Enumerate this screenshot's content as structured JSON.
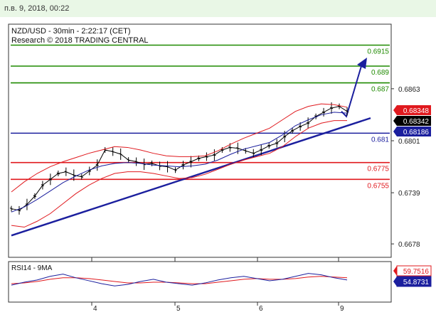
{
  "timestamp": "п.в. 9, 2018, 00:22",
  "chart_data": {
    "type": "candlestick",
    "title": "NZD/USD - 30min - 2:22:17 (CET)",
    "subtitle": "Research © 2018 TRADING CENTRAL",
    "xlabel": "",
    "ylabel": "",
    "x_ticks": [
      "4",
      "5",
      "6",
      "9"
    ],
    "y_ticks": [
      0.6863,
      0.6801,
      0.6739,
      0.6678
    ],
    "ylim": [
      0.6662,
      0.694
    ],
    "grid": false,
    "price": {
      "closes": [
        0.672,
        0.6718,
        0.6725,
        0.6735,
        0.6748,
        0.6755,
        0.6762,
        0.6764,
        0.676,
        0.6758,
        0.6765,
        0.6772,
        0.679,
        0.6788,
        0.6785,
        0.6778,
        0.6776,
        0.6773,
        0.6774,
        0.6771,
        0.677,
        0.6766,
        0.6772,
        0.6776,
        0.678,
        0.6782,
        0.6784,
        0.679,
        0.6793,
        0.6792,
        0.6789,
        0.6786,
        0.679,
        0.6795,
        0.6798,
        0.6806,
        0.6813,
        0.6818,
        0.6822,
        0.683,
        0.6835,
        0.684,
        0.6842,
        0.6836
      ],
      "bollinger_upper": [
        0.674,
        0.6752,
        0.6762,
        0.677,
        0.6776,
        0.6781,
        0.6786,
        0.679,
        0.6794,
        0.6793,
        0.679,
        0.6786,
        0.6783,
        0.6782,
        0.6782,
        0.6783,
        0.6789,
        0.6797,
        0.6804,
        0.681,
        0.6816,
        0.6826,
        0.6836,
        0.6842,
        0.6845,
        0.6844,
        0.6841
      ],
      "bollinger_lower": [
        0.67,
        0.6698,
        0.6705,
        0.6714,
        0.6726,
        0.6738,
        0.6748,
        0.6756,
        0.6762,
        0.6764,
        0.6764,
        0.6762,
        0.6759,
        0.6756,
        0.6757,
        0.6761,
        0.6767,
        0.6773,
        0.6778,
        0.6782,
        0.6786,
        0.6794,
        0.6806,
        0.6816,
        0.6822,
        0.6825,
        0.6825
      ],
      "moving_average": [
        0.6716,
        0.6722,
        0.6731,
        0.6741,
        0.6751,
        0.6759,
        0.6766,
        0.6771,
        0.6774,
        0.6775,
        0.6774,
        0.6772,
        0.6771,
        0.677,
        0.6771,
        0.6773,
        0.6778,
        0.6785,
        0.6791,
        0.6795,
        0.6799,
        0.6808,
        0.6819,
        0.6826,
        0.6832,
        0.6835,
        0.6834
      ]
    },
    "levels": [
      {
        "value": 0.6915,
        "label": "0.6915",
        "color": "#1f8a00"
      },
      {
        "value": 0.689,
        "label": "0.689",
        "color": "#1f8a00"
      },
      {
        "value": 0.687,
        "label": "0.687",
        "color": "#1f8a00"
      },
      {
        "value": 0.681,
        "label": "0.681",
        "color": "#1b1f9e"
      },
      {
        "value": 0.6775,
        "label": "0.6775",
        "color": "#e0191e"
      },
      {
        "value": 0.6755,
        "label": "0.6755",
        "color": "#e0191e"
      }
    ],
    "price_tags": [
      {
        "value": 0.68348,
        "label": "0.68348",
        "bg": "#e0191e",
        "fg": "#ffffff"
      },
      {
        "value": 0.68342,
        "label": "0.68342",
        "bg": "#000000",
        "fg": "#ffffff"
      },
      {
        "value": 0.68186,
        "label": "0.68186",
        "bg": "#1b1f9e",
        "fg": "#ffffff"
      }
    ],
    "rsi": {
      "title": "RSI14 - 9MA",
      "values": [
        48,
        52,
        55,
        60,
        63,
        58,
        54,
        50,
        47,
        49,
        53,
        56,
        52,
        50,
        48,
        51,
        55,
        58,
        60,
        57,
        54,
        56,
        60,
        64,
        62,
        58,
        55
      ],
      "ma_values": [
        50,
        51,
        53,
        56,
        58,
        58,
        57,
        55,
        53,
        51,
        51,
        52,
        52,
        51,
        50,
        50,
        52,
        54,
        56,
        57,
        56,
        56,
        57,
        59,
        60,
        59,
        58
      ],
      "tags": [
        {
          "label": "59.7516",
          "bg": "#e0191e",
          "fg": "#e0191e"
        },
        {
          "label": "54.8731",
          "bg": "#1b1f9e",
          "fg": "#ffffff"
        }
      ]
    },
    "colors": {
      "price": "#000000",
      "trendline": "#1b1f9e",
      "bands": "#e0191e",
      "ma": "#1b1f9e",
      "arrow": "#1b1f9e"
    }
  }
}
